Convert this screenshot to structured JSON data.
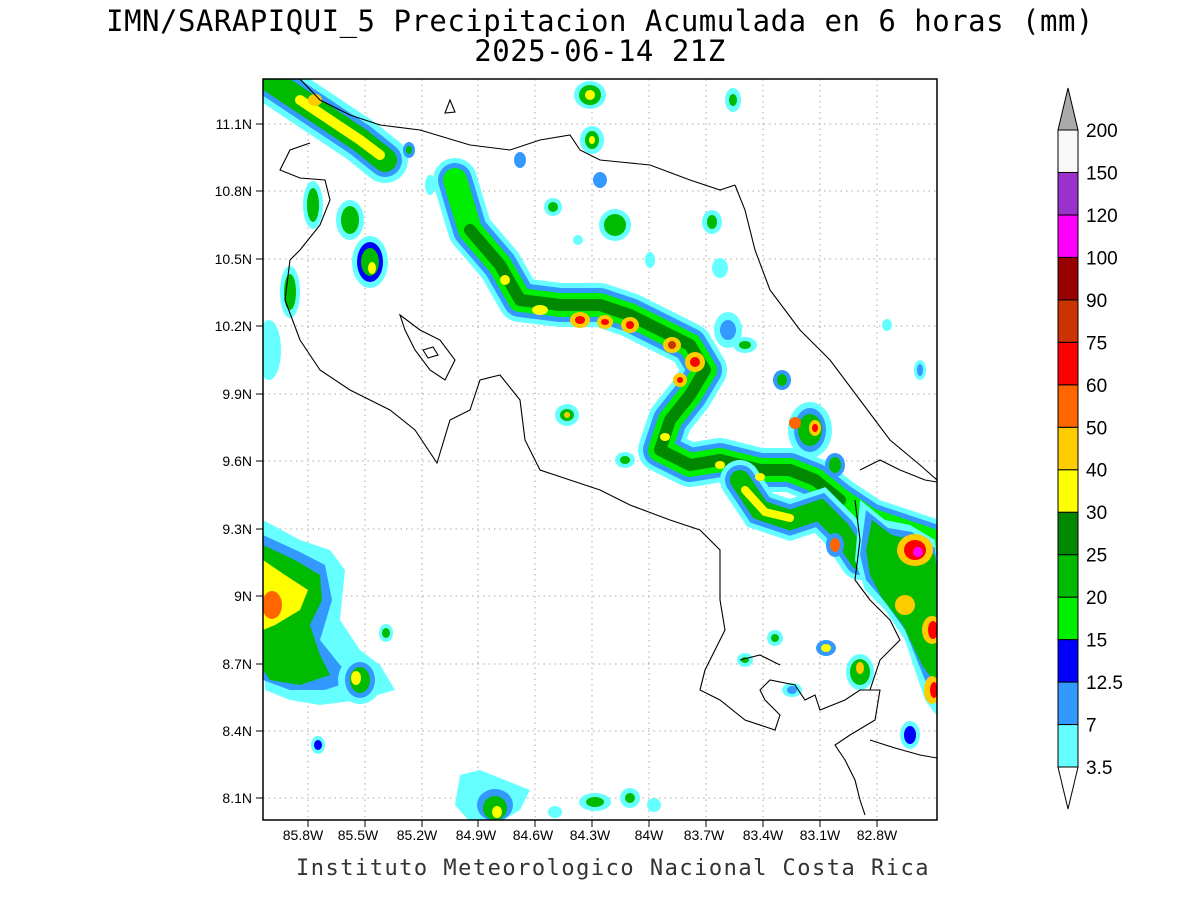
{
  "title_line1": "IMN/SARAPIQUI_5 Precipitacion Acumulada en 6 horas (mm)",
  "title_line2": "2025-06-14 21Z",
  "credit": "Instituto Meteorologico Nacional Costa Rica",
  "y_ticks": [
    "11.1N",
    "10.8N",
    "10.5N",
    "10.2N",
    "9.9N",
    "9.6N",
    "9.3N",
    "9N",
    "8.7N",
    "8.4N",
    "8.1N"
  ],
  "x_ticks": [
    "85.8W",
    "85.5W",
    "85.2W",
    "84.9W",
    "84.6W",
    "84.3W",
    "84W",
    "83.7W",
    "83.4W",
    "83.1W",
    "82.8W"
  ],
  "colorbar": {
    "labels": [
      "3.5",
      "7",
      "12.5",
      "15",
      "20",
      "25",
      "30",
      "40",
      "50",
      "60",
      "75",
      "90",
      "100",
      "120",
      "150",
      "200"
    ],
    "colors": [
      "#66ffff",
      "#3399ff",
      "#0000ff",
      "#00ee00",
      "#00bb00",
      "#008800",
      "#ffff00",
      "#ffcc00",
      "#ff6600",
      "#ff0000",
      "#cc3300",
      "#990000",
      "#ff00ff",
      "#9933cc",
      "#f8f8f8",
      "#aaaaaa"
    ]
  }
}
